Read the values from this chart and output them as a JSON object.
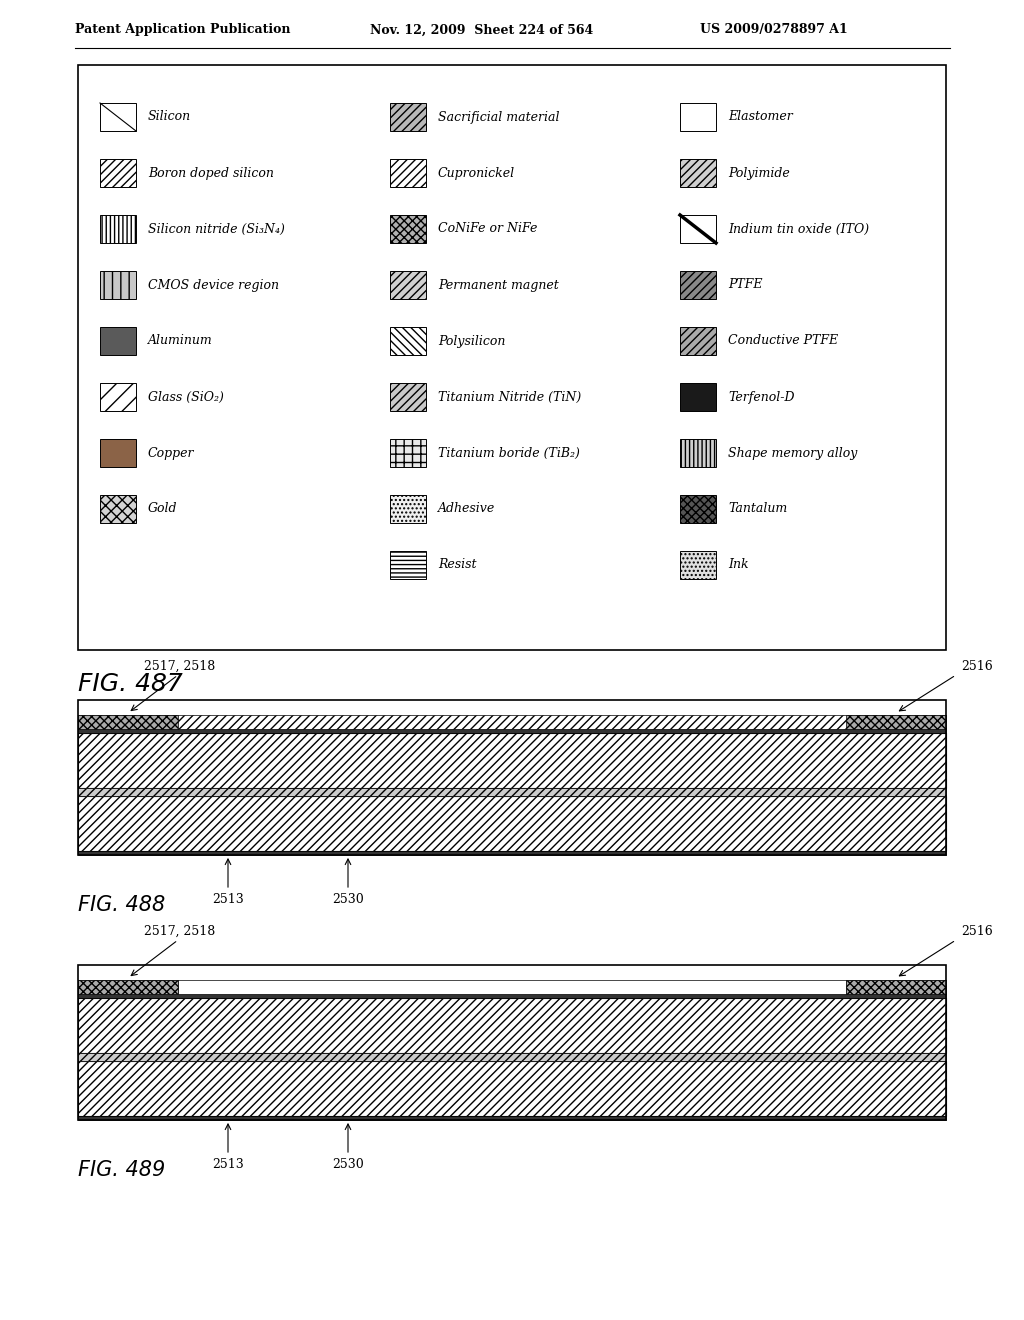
{
  "header_left": "Patent Application Publication",
  "header_mid": "Nov. 12, 2009  Sheet 224 of 564",
  "header_right": "US 2009/0278897 A1",
  "fig487_label": "FIG. 487",
  "fig488_label": "FIG. 488",
  "fig489_label": "FIG. 489",
  "legend_items_col0": [
    {
      "label": "Silicon",
      "pattern": "diag_single"
    },
    {
      "label": "Boron doped silicon",
      "pattern": "diag_medium"
    },
    {
      "label": "Silicon nitride (Si₃N₄)",
      "pattern": "vert_dense"
    },
    {
      "label": "CMOS device region",
      "pattern": "vert_wide"
    },
    {
      "label": "Aluminum",
      "pattern": "solid_gray"
    },
    {
      "label": "Glass (SiO₂)",
      "pattern": "diag_wide"
    },
    {
      "label": "Copper",
      "pattern": "solid_copper"
    },
    {
      "label": "Gold",
      "pattern": "diag_gold"
    }
  ],
  "legend_items_col1": [
    {
      "label": "Sacrificial material",
      "pattern": "diag_dense_gray"
    },
    {
      "label": "Cupronickel",
      "pattern": "diag_medium"
    },
    {
      "label": "CoNiFe or NiFe",
      "pattern": "crosshatch_gray"
    },
    {
      "label": "Permanent magnet",
      "pattern": "diag_perm"
    },
    {
      "label": "Polysilicon",
      "pattern": "wavy_dense"
    },
    {
      "label": "Titanium Nitride (TiN)",
      "pattern": "diag_tin"
    },
    {
      "label": "Titanium boride (TiB₂)",
      "pattern": "vert_horiz_check"
    },
    {
      "label": "Adhesive",
      "pattern": "light_dot"
    },
    {
      "label": "Resist",
      "pattern": "horiz_lines"
    }
  ],
  "legend_items_col2": [
    {
      "label": "Elastomer",
      "pattern": "horiz_dense_fine"
    },
    {
      "label": "Polyimide",
      "pattern": "diag_medium_gray"
    },
    {
      "label": "Indium tin oxide (ITO)",
      "pattern": "diag_single_thick"
    },
    {
      "label": "PTFE",
      "pattern": "diag_dark"
    },
    {
      "label": "Conductive PTFE",
      "pattern": "diag_medium_light"
    },
    {
      "label": "Terfenol-D",
      "pattern": "solid_black"
    },
    {
      "label": "Shape memory alloy",
      "pattern": "vert_wide_light"
    },
    {
      "label": "Tantalum",
      "pattern": "crosshatch_dark"
    },
    {
      "label": "Ink",
      "pattern": "dot_coarse"
    }
  ],
  "bg_color": "#ffffff"
}
